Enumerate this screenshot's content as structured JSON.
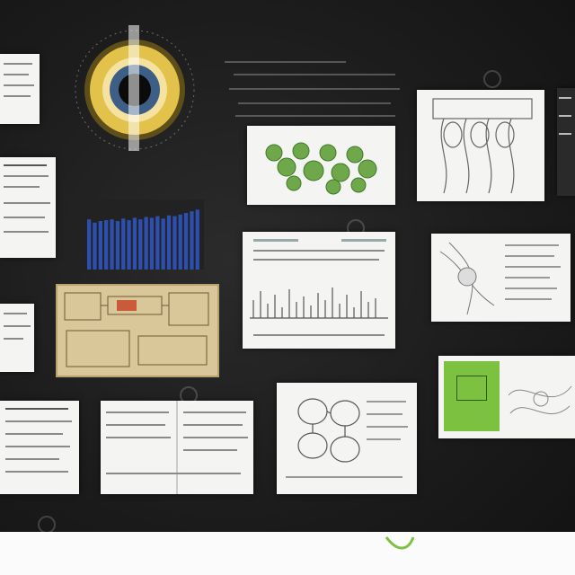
{
  "colors": {
    "background": "#1c1c1c",
    "card": "#f4f4f2",
    "chart_bar": "#2d4fb0",
    "tan_panel": "#d9c79a",
    "green_panel": "#7dc141",
    "eye_gold": "#e2c24a",
    "eye_blue": "#3d5f86"
  },
  "icons": [
    "eye-icon",
    "watermark-circle-icon"
  ],
  "chart_data": {
    "type": "bar",
    "categories": [
      "",
      "",
      "",
      "",
      "",
      "",
      "",
      "",
      "",
      "",
      "",
      "",
      "",
      "",
      "",
      "",
      "",
      "",
      "",
      ""
    ],
    "values": [
      62,
      58,
      60,
      61,
      62,
      60,
      63,
      61,
      64,
      62,
      65,
      64,
      66,
      63,
      67,
      66,
      68,
      70,
      72,
      74
    ],
    "ylim": [
      0,
      80
    ],
    "grid": false
  },
  "brand": {
    "line1": "",
    "line2": "",
    "id1": "",
    "id2": ""
  }
}
